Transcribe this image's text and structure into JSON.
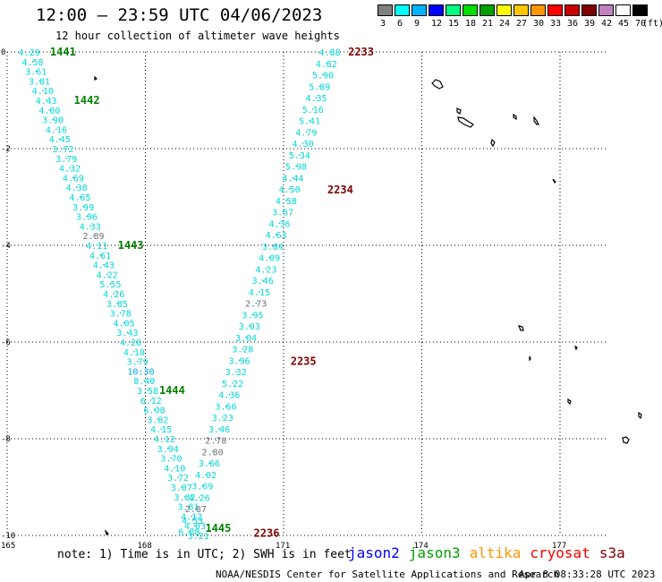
{
  "title": "12:00 — 23:59 UTC 04/06/2023",
  "subtitle": "12 hour collection of altimeter wave heights",
  "legend": {
    "colors": [
      "#808080",
      "#00ffff",
      "#00b4ff",
      "#0000ff",
      "#00ff80",
      "#00e000",
      "#00a000",
      "#ffff00",
      "#ffc800",
      "#ff9600",
      "#ff0000",
      "#c80000",
      "#800000",
      "#c080c0",
      "#ffffff",
      "#000000"
    ],
    "labels": [
      "3",
      "6",
      "9",
      "12",
      "15",
      "18",
      "21",
      "24",
      "27",
      "30",
      "33",
      "36",
      "39",
      "42",
      "45",
      "70"
    ],
    "unit": "(ft)"
  },
  "axes": {
    "x_labels": [
      "165",
      "168",
      "171",
      "174",
      "177"
    ],
    "y_labels": [
      "0",
      "-2",
      "-4",
      "-6",
      "-8",
      "-10"
    ]
  },
  "time_labels": {
    "green": [
      {
        "text": "1441",
        "lon": 165.93,
        "lat": 0.0
      },
      {
        "text": "1442",
        "lon": 166.45,
        "lat": -1.0
      },
      {
        "text": "1443",
        "lon": 167.4,
        "lat": -4.0
      },
      {
        "text": "1444",
        "lon": 168.3,
        "lat": -7.0
      },
      {
        "text": "1445",
        "lon": 169.3,
        "lat": -9.85
      }
    ],
    "red": [
      {
        "text": "2233",
        "lon": 172.4,
        "lat": 0.0
      },
      {
        "text": "2234",
        "lon": 171.95,
        "lat": -2.85
      },
      {
        "text": "2235",
        "lon": 171.15,
        "lat": -6.4
      },
      {
        "text": "2236",
        "lon": 170.35,
        "lat": -9.95
      }
    ]
  },
  "track1": {
    "start": [
      165.48,
      0.0
    ],
    "end": [
      169.15,
      -10.0
    ],
    "values": [
      "4.29",
      "4.58",
      "3.61",
      "3.81",
      "4.10",
      "4.43",
      "4.00",
      "3.90",
      "4.16",
      "4.45",
      "3.72",
      "3.79",
      "4.32",
      "4.69",
      "4.38",
      "4.65",
      "3.99",
      "3.96",
      "4.33",
      "2.89",
      "4.11",
      "4.61",
      "4.43",
      "4.22",
      "5.55",
      "4.26",
      "3.85",
      "3.78",
      "4.05",
      "3.43",
      "4.20",
      "4.10",
      "3.79",
      "10.30",
      "8.40",
      "3.58",
      "6.12",
      "6.08",
      "3.82",
      "4.15",
      "4.12",
      "3.94",
      "3.70",
      "4.10",
      "3.72",
      "3.07",
      "3.82",
      "3.81",
      "4.12",
      "4.03",
      "3.21"
    ]
  },
  "track2": {
    "start": [
      172.0,
      0.0
    ],
    "end": [
      168.95,
      -9.92
    ],
    "values": [
      "4.88",
      "4.82",
      "5.90",
      "5.89",
      "4.35",
      "5.16",
      "5.41",
      "4.79",
      "4.30",
      "5.34",
      "5.98",
      "4.44",
      "4.50",
      "4.58",
      "3.57",
      "4.36",
      "4.63",
      "3.84",
      "4.09",
      "4.23",
      "3.46",
      "4.15",
      "2.73",
      "3.95",
      "3.03",
      "3.04",
      "3.28",
      "3.96",
      "3.32",
      "5.22",
      "4.36",
      "3.66",
      "3.23",
      "3.46",
      "2.78",
      "2.80",
      "3.66",
      "4.02",
      "3.69",
      "4.26",
      "2.87",
      "4.53",
      "6.88"
    ]
  },
  "note": "note: 1) Time is in UTC; 2) SWH is in feet",
  "satellites": [
    {
      "name": "jason2",
      "color": "#0000ff"
    },
    {
      "name": "jason3",
      "color": "#00a000"
    },
    {
      "name": "altika",
      "color": "#ff9600"
    },
    {
      "name": "cryosat",
      "color": "#ff0000"
    },
    {
      "name": "s3a",
      "color": "#800000"
    }
  ],
  "credit": "NOAA/NESDIS Center for Satellite Applications and Research",
  "timestamp": "Apr  8 08:33:28 UTC 2023"
}
